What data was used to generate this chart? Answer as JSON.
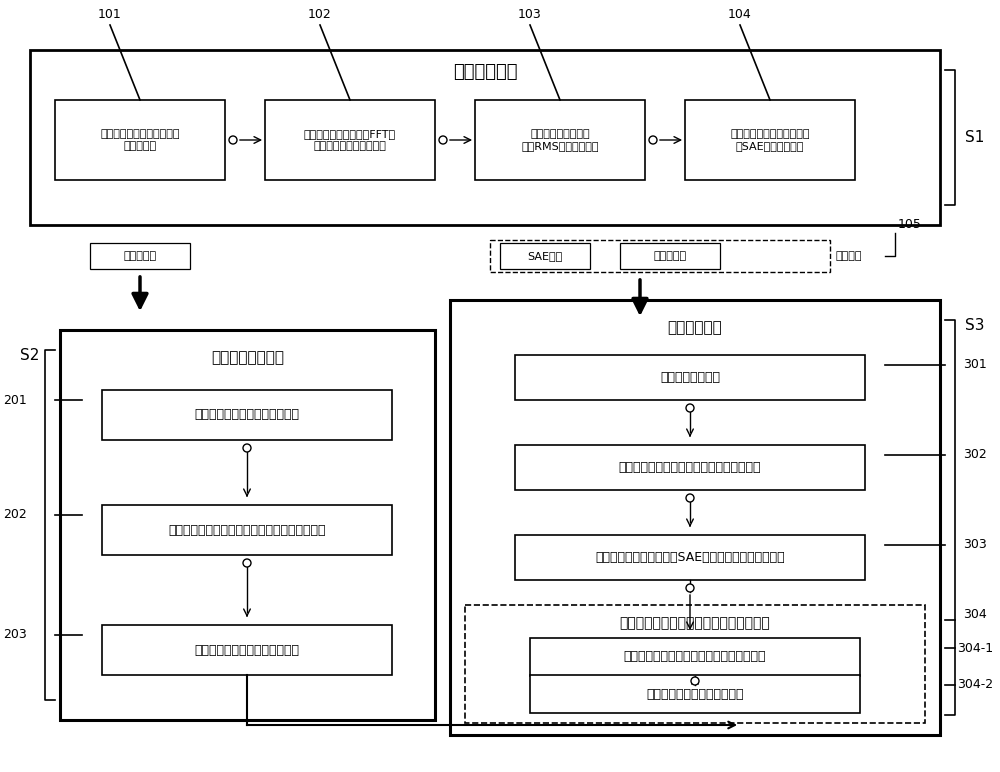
{
  "bg_color": "#ffffff",
  "top_section_title": "健康基线构建",
  "top_boxes": [
    "从直升机传动轴振动信号选\n取训练数据",
    "使用快速傅里叶变换（FFT）\n对训练数据进行频谱变换",
    "对提取到的频谱信号\n进行RMS压缩变换处理",
    "将变换后的输入向量依次送\n入SAE模型进行训练"
  ],
  "top_box_labels": [
    "101",
    "102",
    "103",
    "104"
  ],
  "middle_left_label": "健康表征集",
  "middle_right_label": "健康基线",
  "middle_right_ref": "105",
  "sae_label": "SAE模型",
  "htzj_label": "健康表征集",
  "left_section_title": "基线统计阈值生成",
  "left_boxes": [
    "计算健康表征集的总体分布参数",
    "计算总体分布参数与各健康向量之间的马氏距离",
    "生成直升机传动轴基线统计阈值"
  ],
  "left_box_labels": [
    "201",
    "202",
    "203"
  ],
  "right_section_title": "实时异常判定",
  "right_boxes": [
    "获取实时测试数据",
    "重复步骤一，将测试数据的转化为输入向量",
    "将测试输入向量依次送入SAE模型，得到实时状态向量"
  ],
  "right_box_labels": [
    "301",
    "302",
    "303"
  ],
  "sub_section_title": "基于健康基线与基线统计阈值的异常判定",
  "sub_boxes": [
    "计算健康表征集与实时状态向量的马氏距离",
    "结合基线计阈值实现异常判定"
  ],
  "sub_box_labels": [
    "304-1",
    "304-2"
  ],
  "labels": {
    "s1": "S1",
    "s2": "S2",
    "s3": "S3",
    "304": "304"
  }
}
